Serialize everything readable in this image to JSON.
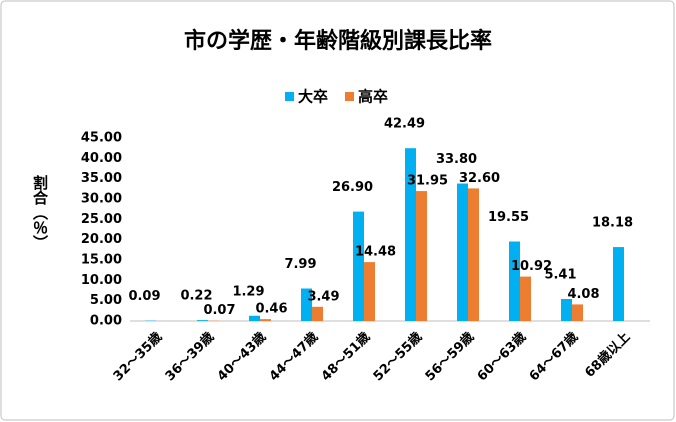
{
  "chart_data": {
    "type": "bar",
    "title": "市の学歴・年齢階級別課長比率",
    "y_label": "割合（％）",
    "categories": [
      "32～35歳",
      "36～39歳",
      "40～43歳",
      "44～47歳",
      "48～51歳",
      "52～55歳",
      "56～59歳",
      "60～63歳",
      "64～67歳",
      "68歳以上"
    ],
    "series": [
      {
        "name": "大卒",
        "color": "#00b0f0",
        "values": [
          0.09,
          0.22,
          1.29,
          7.99,
          26.9,
          42.49,
          33.8,
          19.55,
          5.41,
          18.18
        ],
        "value_labels": [
          "0.09",
          "0.22",
          "1.29",
          "7.99",
          "26.90",
          "42.49",
          "33.80",
          "19.55",
          "5.41",
          "18.18"
        ]
      },
      {
        "name": "高卒",
        "color": "#ed7d31",
        "values": [
          null,
          0.07,
          0.46,
          3.49,
          14.48,
          31.95,
          32.6,
          10.92,
          4.08,
          null
        ],
        "value_labels": [
          null,
          "0.07",
          "0.46",
          "3.49",
          "14.48",
          "31.95",
          "32.60",
          "10.92",
          "4.08",
          null
        ]
      }
    ],
    "ylim": [
      0,
      45
    ],
    "yticks": [
      {
        "value": 0,
        "label": "0.00"
      },
      {
        "value": 5,
        "label": "5.00"
      },
      {
        "value": 10,
        "label": "10.00"
      },
      {
        "value": 15,
        "label": "15.00"
      },
      {
        "value": 20,
        "label": "20.00"
      },
      {
        "value": 25,
        "label": "25.00"
      },
      {
        "value": 30,
        "label": "30.00"
      },
      {
        "value": 35,
        "label": "35.00"
      },
      {
        "value": 40,
        "label": "40.00"
      },
      {
        "value": 45,
        "label": "45.00"
      }
    ],
    "grid": false,
    "legend": "top"
  }
}
